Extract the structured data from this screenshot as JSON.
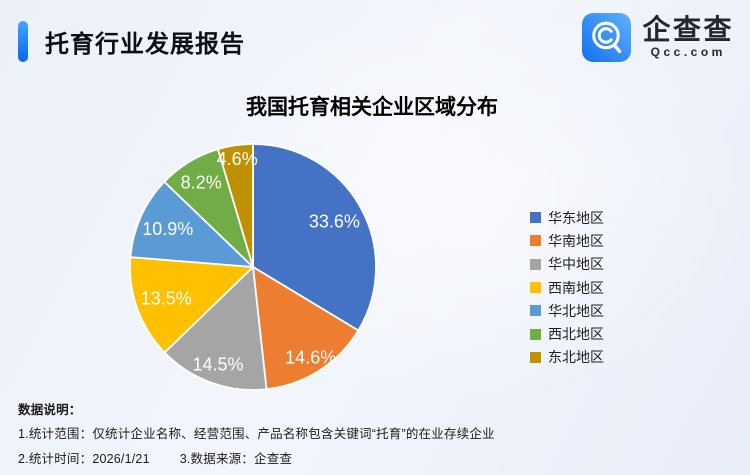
{
  "header": {
    "title": "托育行业发展报告"
  },
  "logo": {
    "name": "企查查",
    "domain": "Qcc.com"
  },
  "chart_data": {
    "type": "pie",
    "title": "我国托育相关企业区域分布",
    "categories": [
      "华东地区",
      "华南地区",
      "华中地区",
      "西南地区",
      "华北地区",
      "西北地区",
      "东北地区"
    ],
    "values": [
      33.6,
      14.6,
      14.5,
      13.5,
      10.9,
      8.2,
      4.6
    ],
    "labels": [
      "33.6%",
      "14.6%",
      "14.5%",
      "13.5%",
      "10.9%",
      "8.2%",
      "4.6%"
    ],
    "colors": [
      "#4472C4",
      "#ED7D31",
      "#A5A5A5",
      "#FFC000",
      "#5B9BD5",
      "#70AD47",
      "#BF9000"
    ],
    "unit": "percent",
    "start_angle_deg": 0,
    "direction": "clockwise",
    "legend_position": "right",
    "label_color": "#FFFFFF"
  },
  "footnotes": {
    "heading": "数据说明：",
    "line1": "1.统计范围：仅统计企业名称、经营范围、产品名称包含关键词“托育”的在业存续企业",
    "time": "2.统计时间：2026/1/21",
    "source": "3.数据来源：企查查"
  },
  "colors": {
    "accent_bar_top": "#41A5FF",
    "accent_bar_bottom": "#0A66EC",
    "logo_blue_light": "#5FB1FF",
    "logo_blue_dark": "#1270EE",
    "background": "#EFF2FA",
    "text_dark": "#1C1C1C"
  }
}
